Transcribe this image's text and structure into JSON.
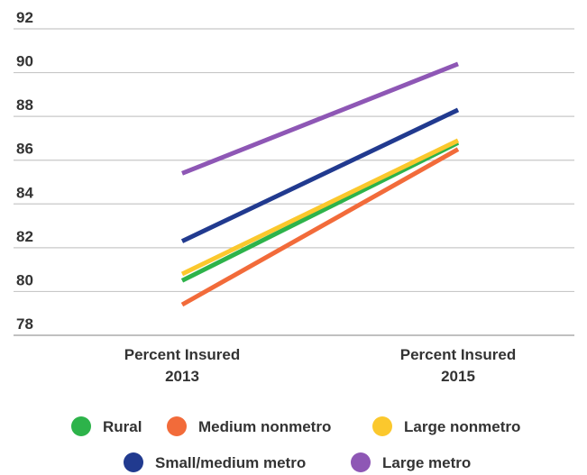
{
  "chart_data": {
    "type": "line",
    "title": "",
    "xlabel": "",
    "ylabel": "",
    "categories": [
      [
        "Percent Insured",
        "2013"
      ],
      [
        "Percent Insured",
        "2015"
      ]
    ],
    "ylim": [
      78,
      92
    ],
    "yticks": [
      78,
      80,
      82,
      84,
      86,
      88,
      90,
      92
    ],
    "grid": true,
    "legend_position": "bottom",
    "series": [
      {
        "name": "Rural",
        "color": "#2db34a",
        "values": [
          80.5,
          86.8
        ]
      },
      {
        "name": "Medium nonmetro",
        "color": "#f26b3a",
        "values": [
          79.4,
          86.5
        ]
      },
      {
        "name": "Large nonmetro",
        "color": "#fbc82d",
        "values": [
          80.8,
          86.9
        ]
      },
      {
        "name": "Small/medium metro",
        "color": "#213a8f",
        "values": [
          82.3,
          88.3
        ]
      },
      {
        "name": "Large metro",
        "color": "#8e57b5",
        "values": [
          85.4,
          90.4
        ]
      }
    ]
  }
}
